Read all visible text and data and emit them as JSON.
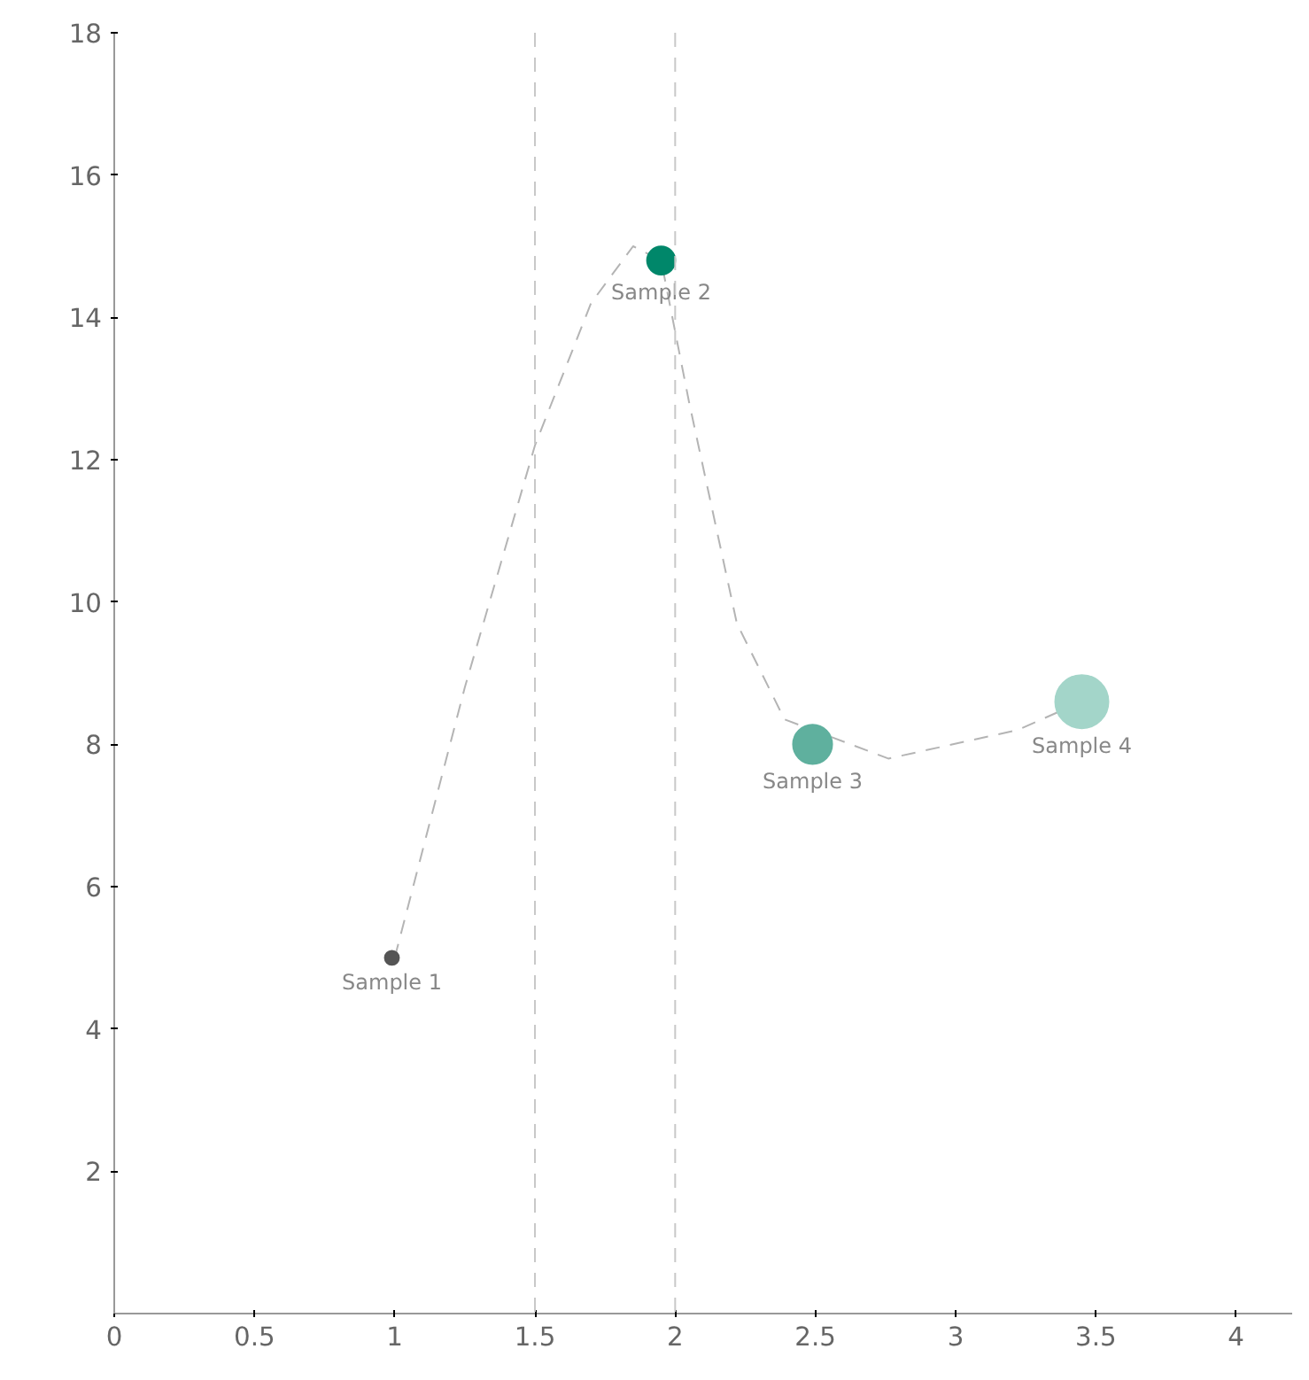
{
  "chart_data": {
    "type": "bubble",
    "xlim": [
      0,
      4.2
    ],
    "ylim": [
      0,
      18
    ],
    "xticks": [
      0,
      0.5,
      1,
      1.5,
      2,
      2.5,
      3,
      3.5,
      4
    ],
    "yticks": [
      2,
      4,
      6,
      8,
      10,
      12,
      14,
      16,
      18
    ],
    "grid": false,
    "ref_lines": [
      {
        "axis": "x",
        "value": 1.5,
        "color": "#c8c8c8",
        "line_style": "dashed"
      },
      {
        "axis": "x",
        "value": 2,
        "color": "#c8c8c8",
        "line_style": "dashed"
      }
    ],
    "series": [
      {
        "type": "line",
        "color": "#b4b4b4",
        "line_style": "dashed",
        "marker": "none",
        "x": [
          1,
          1.25,
          1.5,
          1.7,
          1.85,
          1.95,
          2.05,
          2.22,
          2.39,
          2.76,
          3.22,
          3.45
        ],
        "values": [
          5,
          8.8,
          12.2,
          14.2,
          15,
          14.8,
          12.8,
          9.7,
          8.35,
          7.8,
          8.2,
          8.6
        ]
      },
      {
        "name": "Sample 1",
        "color": "#555555",
        "x": [
          0.99
        ],
        "values": [
          5
        ],
        "sizes": [
          0.07
        ]
      },
      {
        "name": "Sample 2",
        "color": "#00876a",
        "x": [
          1.95
        ],
        "values": [
          14.8
        ],
        "sizes": [
          0.28
        ]
      },
      {
        "name": "Sample 3",
        "color": "#5fb09e",
        "x": [
          2.49
        ],
        "values": [
          8.0
        ],
        "sizes": [
          0.54
        ]
      },
      {
        "name": "Sample 4",
        "color": "#a3d5c9",
        "x": [
          3.45
        ],
        "values": [
          8.6
        ],
        "sizes": [
          1
        ]
      }
    ]
  }
}
